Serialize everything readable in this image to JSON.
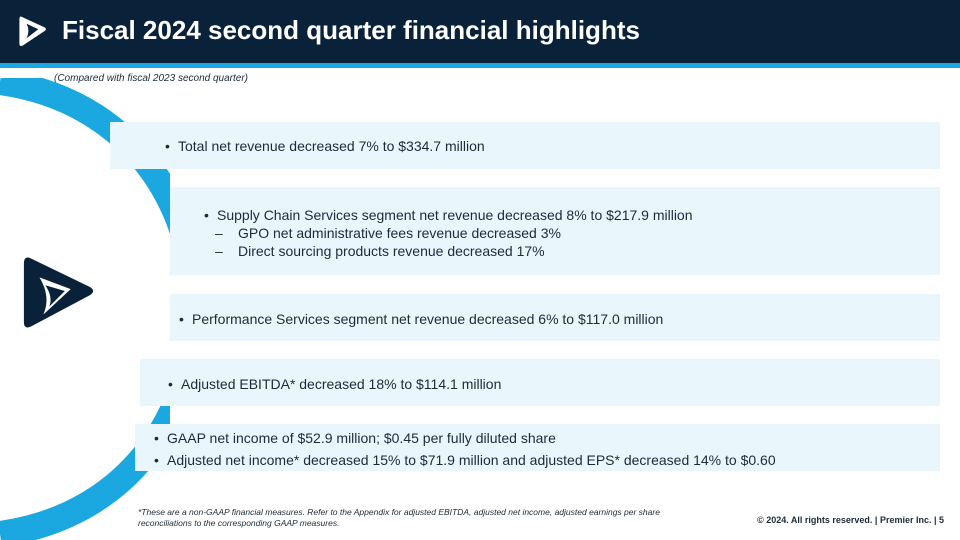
{
  "header": {
    "title": "Fiscal 2024 second quarter financial highlights"
  },
  "subtitle": "(Compared with fiscal 2023 second quarter)",
  "highlights": {
    "revenue": "Total net revenue decreased 7% to $334.7 million",
    "supply_chain": {
      "main": "Supply Chain Services segment net revenue decreased 8% to $217.9 million",
      "sub": [
        "GPO net administrative fees revenue decreased 3%",
        "Direct sourcing products revenue decreased 17%"
      ]
    },
    "performance": "Performance Services segment net revenue decreased 6% to $117.0 million",
    "ebitda": "Adjusted EBITDA* decreased 18% to $114.1 million",
    "net_income": [
      "GAAP net income of $52.9 million; $0.45 per fully diluted share",
      "Adjusted net income* decreased 15% to $71.9 million and adjusted EPS* decreased 14% to $0.60"
    ]
  },
  "footnote": "*These are a non-GAAP financial measures. Refer to the Appendix for adjusted EBITDA, adjusted net income, adjusted earnings per share reconciliations to the corresponding GAAP measures.",
  "footer": {
    "copyright": "© 2024. All rights reserved.  |  Premier Inc.  |  5"
  },
  "colors": {
    "navy": "#0a2239",
    "accent_blue": "#1ba8e0",
    "band": "#e9f6fc"
  }
}
